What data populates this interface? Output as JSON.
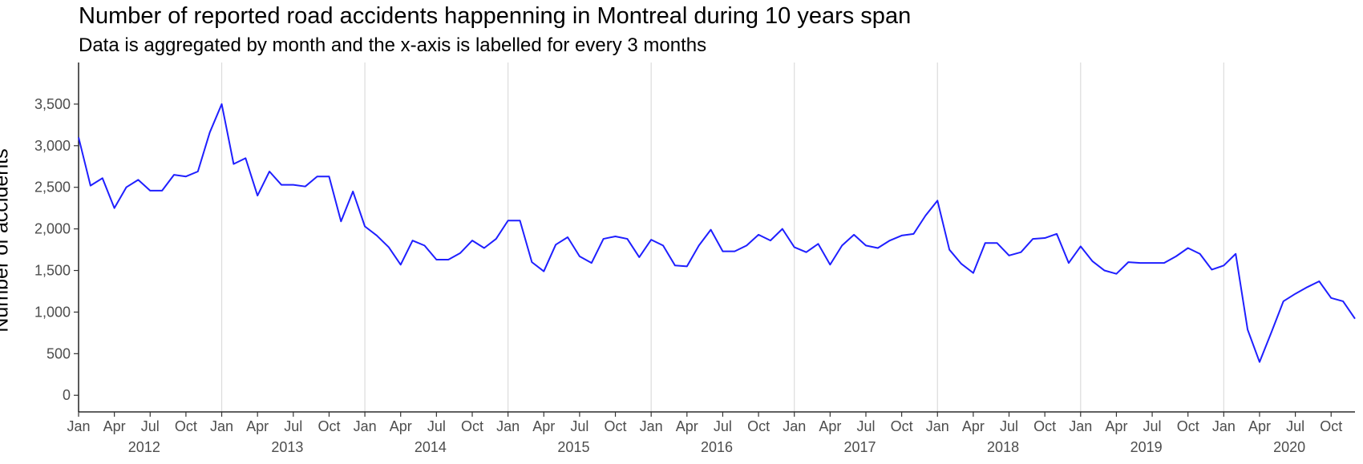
{
  "chart_data": {
    "type": "line",
    "title": "Number of reported road accidents happenning in Montreal during 10 years span",
    "subtitle": "Data is aggregated by month and the x-axis is labelled for every 3 months",
    "xlabel": "",
    "ylabel": "Number of accidents",
    "ylim": [
      -200,
      4000
    ],
    "yticks": [
      0,
      500,
      1000,
      1500,
      2000,
      2500,
      3000,
      3500
    ],
    "ytick_labels": [
      "0",
      "500",
      "1,000",
      "1,500",
      "2,000",
      "2,500",
      "3,000",
      "3,500"
    ],
    "x_start": "2012-01",
    "x_end": "2020-12",
    "xtick_month_labels": [
      "Jan",
      "Apr",
      "Jul",
      "Oct"
    ],
    "year_labels": [
      "2012",
      "2013",
      "2014",
      "2015",
      "2016",
      "2017",
      "2018",
      "2019",
      "2020"
    ],
    "grid": "vertical lines at each January",
    "line_color": "#1f1fff",
    "series": [
      {
        "x": [
          "2012-01",
          "2012-02",
          "2012-03",
          "2012-04",
          "2012-05",
          "2012-06",
          "2012-07",
          "2012-08",
          "2012-09",
          "2012-10",
          "2012-11",
          "2012-12",
          "2013-01",
          "2013-02",
          "2013-03",
          "2013-04",
          "2013-05",
          "2013-06",
          "2013-07",
          "2013-08",
          "2013-09",
          "2013-10",
          "2013-11",
          "2013-12",
          "2014-01",
          "2014-02",
          "2014-03",
          "2014-04",
          "2014-05",
          "2014-06",
          "2014-07",
          "2014-08",
          "2014-09",
          "2014-10",
          "2014-11",
          "2014-12",
          "2015-01",
          "2015-02",
          "2015-03",
          "2015-04",
          "2015-05",
          "2015-06",
          "2015-07",
          "2015-08",
          "2015-09",
          "2015-10",
          "2015-11",
          "2015-12",
          "2016-01",
          "2016-02",
          "2016-03",
          "2016-04",
          "2016-05",
          "2016-06",
          "2016-07",
          "2016-08",
          "2016-09",
          "2016-10",
          "2016-11",
          "2016-12",
          "2017-01",
          "2017-02",
          "2017-03",
          "2017-04",
          "2017-05",
          "2017-06",
          "2017-07",
          "2017-08",
          "2017-09",
          "2017-10",
          "2017-11",
          "2017-12",
          "2018-01",
          "2018-02",
          "2018-03",
          "2018-04",
          "2018-05",
          "2018-06",
          "2018-07",
          "2018-08",
          "2018-09",
          "2018-10",
          "2018-11",
          "2018-12",
          "2019-01",
          "2019-02",
          "2019-03",
          "2019-04",
          "2019-05",
          "2019-06",
          "2019-07",
          "2019-08",
          "2019-09",
          "2019-10",
          "2019-11",
          "2019-12",
          "2020-01",
          "2020-02",
          "2020-03",
          "2020-04",
          "2020-05",
          "2020-06",
          "2020-07",
          "2020-08",
          "2020-09",
          "2020-10",
          "2020-11",
          "2020-12"
        ],
        "values": [
          3100,
          2520,
          2610,
          2250,
          2500,
          2590,
          2460,
          2460,
          2650,
          2630,
          2690,
          3160,
          3500,
          2780,
          2850,
          2400,
          2690,
          2530,
          2530,
          2510,
          2630,
          2630,
          2090,
          2450,
          2030,
          1920,
          1780,
          1570,
          1860,
          1800,
          1630,
          1630,
          1710,
          1860,
          1770,
          1880,
          2100,
          2100,
          1600,
          1490,
          1810,
          1900,
          1670,
          1590,
          1880,
          1910,
          1880,
          1660,
          1870,
          1800,
          1560,
          1550,
          1800,
          1990,
          1730,
          1730,
          1800,
          1930,
          1860,
          2000,
          1780,
          1720,
          1820,
          1570,
          1800,
          1930,
          1800,
          1770,
          1860,
          1920,
          1940,
          2160,
          2340,
          1750,
          1580,
          1470,
          1830,
          1830,
          1680,
          1720,
          1880,
          1890,
          1940,
          1590,
          1790,
          1610,
          1500,
          1460,
          1600,
          1590,
          1590,
          1590,
          1670,
          1770,
          1700,
          1510,
          1560,
          1700,
          790,
          400,
          760,
          1130,
          1220,
          1300,
          1370,
          1170,
          1130,
          920
        ]
      }
    ]
  }
}
